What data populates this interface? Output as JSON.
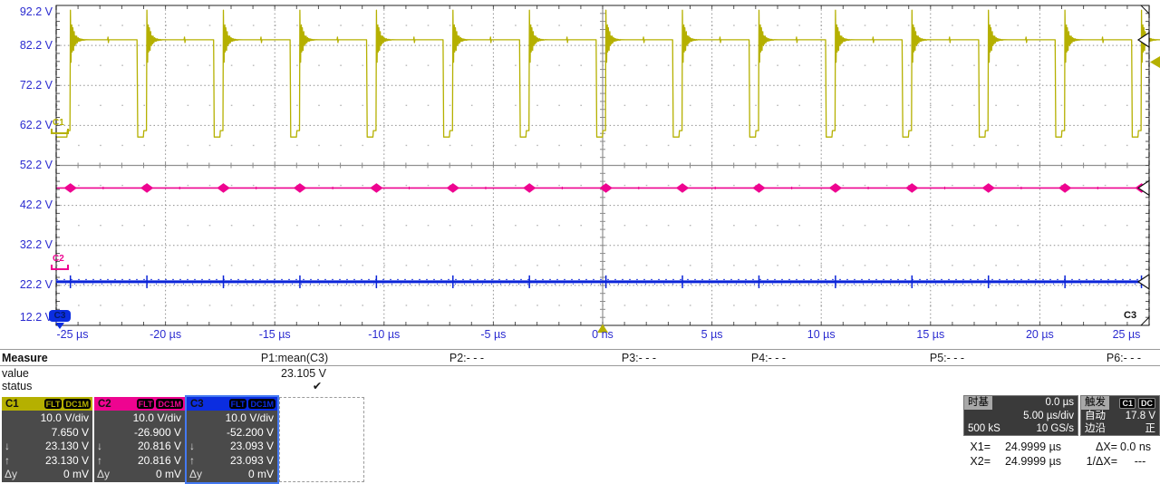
{
  "scope": {
    "y_axis_labels": [
      "92.2 V",
      "82.2 V",
      "72.2 V",
      "62.2 V",
      "52.2 V",
      "42.2 V",
      "32.2 V",
      "22.2 V",
      "12.2 V"
    ],
    "x_axis_labels": [
      "-25 µs",
      "-20 µs",
      "-15 µs",
      "-10 µs",
      "-5 µs",
      "0 ns",
      "5 µs",
      "10 µs",
      "15 µs",
      "20 µs",
      "25 µs"
    ],
    "right_axis_channel": "C3"
  },
  "chart_data": {
    "type": "line",
    "title": "Oscilloscope waveforms, 3 channels",
    "x_unit": "µs",
    "x_range_us": [
      -25,
      25
    ],
    "time_per_div_us": 5,
    "x_ticks": [
      "-25 µs",
      "-20 µs",
      "-15 µs",
      "-10 µs",
      "-5 µs",
      "0 ns",
      "5 µs",
      "10 µs",
      "15 µs",
      "20 µs",
      "25 µs"
    ],
    "y_unit": "V",
    "y_range_v": [
      12.2,
      92.2
    ],
    "volts_per_div": 10,
    "y_ticks": [
      "92.2 V",
      "82.2 V",
      "72.2 V",
      "62.2 V",
      "52.2 V",
      "42.2 V",
      "32.2 V",
      "22.2 V",
      "12.2 V"
    ],
    "grid": "dotted majors, solid center crosshair with minor ticks",
    "series": [
      {
        "name": "C1",
        "color": "#b5b000",
        "shape": "pwm_square",
        "high_v": 83.6,
        "low_v": 59.3,
        "pre_rise_step_v": 60.9,
        "ring_peak_v": 91.0,
        "period_us": 3.5,
        "low_width_us": 0.45,
        "first_rise_us": -24.35,
        "pulse_count": 15
      },
      {
        "name": "C2",
        "color": "#ee0490",
        "shape": "flat_with_diamond_bumps",
        "level_v": 46.55,
        "bump_peak_v": 47.75,
        "bump_dip_v": 45.35,
        "bump_period_us": 3.5
      },
      {
        "name": "C3",
        "color": "#0b24d8",
        "shape": "flat_noisy_with_spikes",
        "level_v": 23.1,
        "spike_high_v": 24.7,
        "spike_low_v": 21.5,
        "spike_period_us": 3.5
      }
    ],
    "cursors": {
      "x1_us": 24.9999,
      "x2_us": 24.9999,
      "style": "vertical dashed black lines at both plot edges"
    },
    "trigger_level_marker": {
      "channel": "C1",
      "level_v_on_screen": 76.0
    },
    "trigger_time_marker_us": 0
  },
  "measure": {
    "title": "Measure",
    "value_row_label": "value",
    "status_row_label": "status",
    "columns": [
      {
        "label": "P1:mean(C3)",
        "value": "23.105 V",
        "status": "✔"
      },
      {
        "label": "P2:- - -",
        "value": "",
        "status": ""
      },
      {
        "label": "P3:- - -",
        "value": "",
        "status": ""
      },
      {
        "label": "P4:- - -",
        "value": "",
        "status": ""
      },
      {
        "label": "P5:- - -",
        "value": "",
        "status": ""
      },
      {
        "label": "P6:- - -",
        "value": "",
        "status": ""
      }
    ]
  },
  "channel_row_symbols": {
    "down": "↓",
    "up": "↑",
    "dy": "Δy"
  },
  "channels": [
    {
      "id": "C1",
      "color": "#b5b000",
      "badges": [
        "FLT",
        "DC1M"
      ],
      "scale": "10.0 V/div",
      "offset": "7.650 V",
      "cursor_min": "23.130 V",
      "cursor_max": "23.130 V",
      "delta_y": "0 mV",
      "selected": false
    },
    {
      "id": "C2",
      "color": "#ee0490",
      "badges": [
        "FLT",
        "DC1M"
      ],
      "scale": "10.0 V/div",
      "offset": "-26.900 V",
      "cursor_min": "20.816 V",
      "cursor_max": "20.816 V",
      "delta_y": "0 mV",
      "selected": false
    },
    {
      "id": "C3",
      "color": "#0b2de0",
      "badges": [
        "FLT",
        "DC1M"
      ],
      "scale": "10.0 V/div",
      "offset": "-52.200 V",
      "cursor_min": "23.093 V",
      "cursor_max": "23.093 V",
      "delta_y": "0 mV",
      "selected": true
    }
  ],
  "timebase": {
    "title": "时基",
    "delay": "0.0 µs",
    "scale": "5.00 µs/div",
    "samples": "500 kS",
    "sample_rate": "10 GS/s"
  },
  "trigger": {
    "title": "触发",
    "source_badge": "C1",
    "coupling_badge": "DC",
    "mode": "自动",
    "level": "17.8 V",
    "type": "边沿",
    "slope": "正"
  },
  "cursors": {
    "x1_label": "X1=",
    "x1_value": "24.9999 µs",
    "x2_label": "X2=",
    "x2_value": "24.9999 µs",
    "dx_label": "ΔX=",
    "dx_value": "0.0 ns",
    "inv_dx_label": "1/ΔX=",
    "inv_dx_value": "---"
  }
}
